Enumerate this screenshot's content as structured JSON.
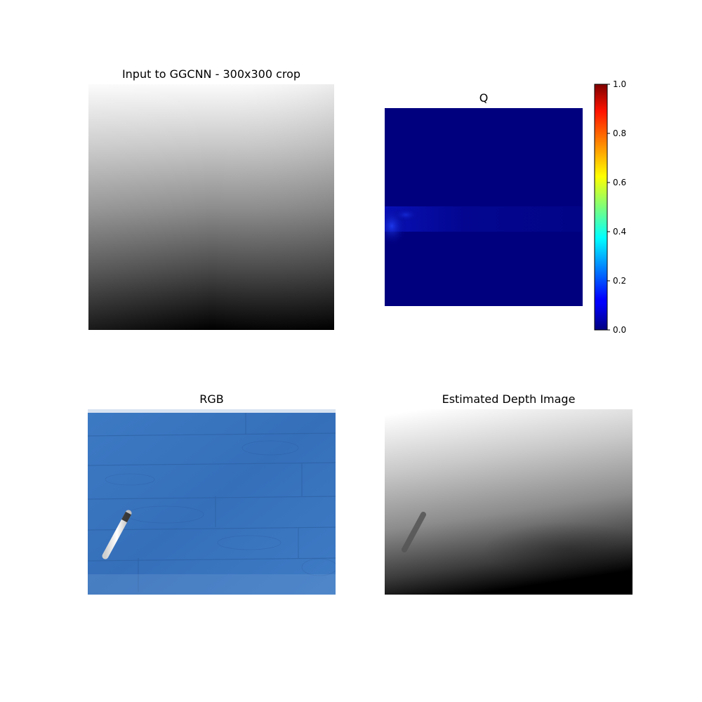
{
  "chart_data": [
    {
      "type": "heatmap",
      "title": "Input to GGCNN - 300x300 crop",
      "colormap": "gray",
      "axes": "off"
    },
    {
      "type": "heatmap",
      "title": "Q",
      "colormap": "jet",
      "axes": "off",
      "colorbar": {
        "range": [
          0.0,
          1.0
        ],
        "ticks": [
          0.0,
          0.2,
          0.4,
          0.6,
          0.8,
          1.0
        ],
        "tick_labels": [
          "0.0",
          "0.2",
          "0.4",
          "0.6",
          "0.8",
          "1.0"
        ],
        "placement": "right"
      }
    },
    {
      "type": "heatmap",
      "title": "RGB",
      "axes": "off"
    },
    {
      "type": "heatmap",
      "title": "Estimated Depth Image",
      "colormap": "gray",
      "axes": "off"
    }
  ],
  "colors": {
    "rgb_floor": "#3a76bf",
    "q_background": "#00007f",
    "q_hotspot": "#1a2bd6"
  }
}
